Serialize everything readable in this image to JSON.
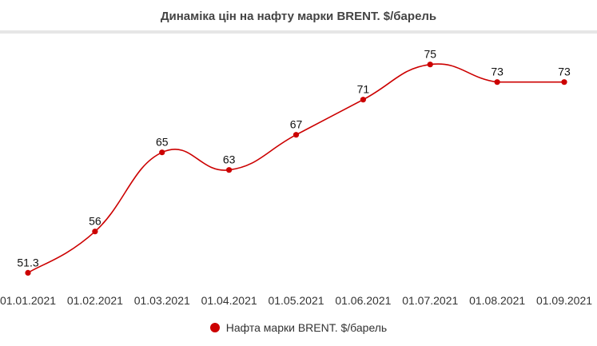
{
  "chart_data": {
    "type": "line",
    "title": "Динаміка цін на нафту марки BRENT. $/барель",
    "categories": [
      "01.01.2021",
      "01.02.2021",
      "01.03.2021",
      "01.04.2021",
      "01.05.2021",
      "01.06.2021",
      "01.07.2021",
      "01.08.2021",
      "01.09.2021"
    ],
    "series": [
      {
        "name": "Нафта марки BRENT. $/барель",
        "values": [
          51.3,
          56,
          65,
          63,
          67,
          71,
          75,
          73,
          73
        ],
        "labels": [
          "51.3",
          "56",
          "65",
          "63",
          "67",
          "71",
          "75",
          "73",
          "73"
        ],
        "color": "#cc0000"
      }
    ],
    "xlabel": "",
    "ylabel": "",
    "smooth": true,
    "grid": false,
    "legend_position": "bottom"
  }
}
